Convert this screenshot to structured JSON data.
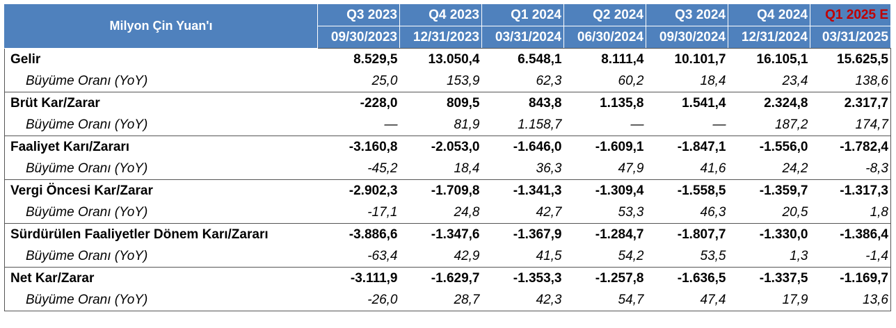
{
  "header": {
    "label": "Milyon Çin Yuan'ı",
    "periods": [
      {
        "quarter": "Q3 2023",
        "date": "09/30/2023",
        "estimate": false
      },
      {
        "quarter": "Q4 2023",
        "date": "12/31/2023",
        "estimate": false
      },
      {
        "quarter": "Q1 2024",
        "date": "03/31/2024",
        "estimate": false
      },
      {
        "quarter": "Q2 2024",
        "date": "06/30/2024",
        "estimate": false
      },
      {
        "quarter": "Q3 2024",
        "date": "09/30/2024",
        "estimate": false
      },
      {
        "quarter": "Q4 2024",
        "date": "12/31/2024",
        "estimate": false
      },
      {
        "quarter": "Q1 2025 E",
        "date": "03/31/2025",
        "estimate": true
      }
    ]
  },
  "colors": {
    "header_bg": "#4f81bd",
    "header_text": "#ffffff",
    "estimate_text": "#c00000"
  },
  "rows": [
    {
      "label": "Gelir",
      "values": [
        "8.529,5",
        "13.050,4",
        "6.548,1",
        "8.111,4",
        "10.101,7",
        "16.105,1",
        "15.625,5"
      ],
      "growth_label": "Büyüme Oranı (YoY)",
      "growth": [
        "25,0",
        "153,9",
        "62,3",
        "60,2",
        "18,4",
        "23,4",
        "138,6"
      ]
    },
    {
      "label": "Brüt Kar/Zarar",
      "values": [
        "-228,0",
        "809,5",
        "843,8",
        "1.135,8",
        "1.541,4",
        "2.324,8",
        "2.317,7"
      ],
      "growth_label": "Büyüme Oranı (YoY)",
      "growth": [
        "—",
        "81,9",
        "1.158,7",
        "—",
        "—",
        "187,2",
        "174,7"
      ]
    },
    {
      "label": "Faaliyet Karı/Zararı",
      "values": [
        "-3.160,8",
        "-2.053,0",
        "-1.646,0",
        "-1.609,1",
        "-1.847,1",
        "-1.556,0",
        "-1.782,4"
      ],
      "growth_label": "Büyüme Oranı (YoY)",
      "growth": [
        "-45,2",
        "18,4",
        "36,3",
        "47,9",
        "41,6",
        "24,2",
        "-8,3"
      ]
    },
    {
      "label": "Vergi Öncesi Kar/Zarar",
      "values": [
        "-2.902,3",
        "-1.709,8",
        "-1.341,3",
        "-1.309,4",
        "-1.558,5",
        "-1.359,7",
        "-1.317,3"
      ],
      "growth_label": "Büyüme Oranı (YoY)",
      "growth": [
        "-17,1",
        "24,8",
        "42,7",
        "53,3",
        "46,3",
        "20,5",
        "1,8"
      ]
    },
    {
      "label": "Sürdürülen Faaliyetler Dönem Karı/Zararı",
      "values": [
        "-3.886,6",
        "-1.347,6",
        "-1.367,9",
        "-1.284,7",
        "-1.807,7",
        "-1.330,0",
        "-1.386,4"
      ],
      "growth_label": "Büyüme Oranı (YoY)",
      "growth": [
        "-63,4",
        "42,9",
        "41,5",
        "54,2",
        "53,5",
        "1,3",
        "-1,4"
      ]
    },
    {
      "label": "Net Kar/Zarar",
      "values": [
        "-3.111,9",
        "-1.629,7",
        "-1.353,3",
        "-1.257,8",
        "-1.636,5",
        "-1.337,5",
        "-1.169,7"
      ],
      "growth_label": "Büyüme Oranı (YoY)",
      "growth": [
        "-26,0",
        "28,7",
        "42,3",
        "54,7",
        "47,4",
        "17,9",
        "13,6"
      ]
    }
  ]
}
